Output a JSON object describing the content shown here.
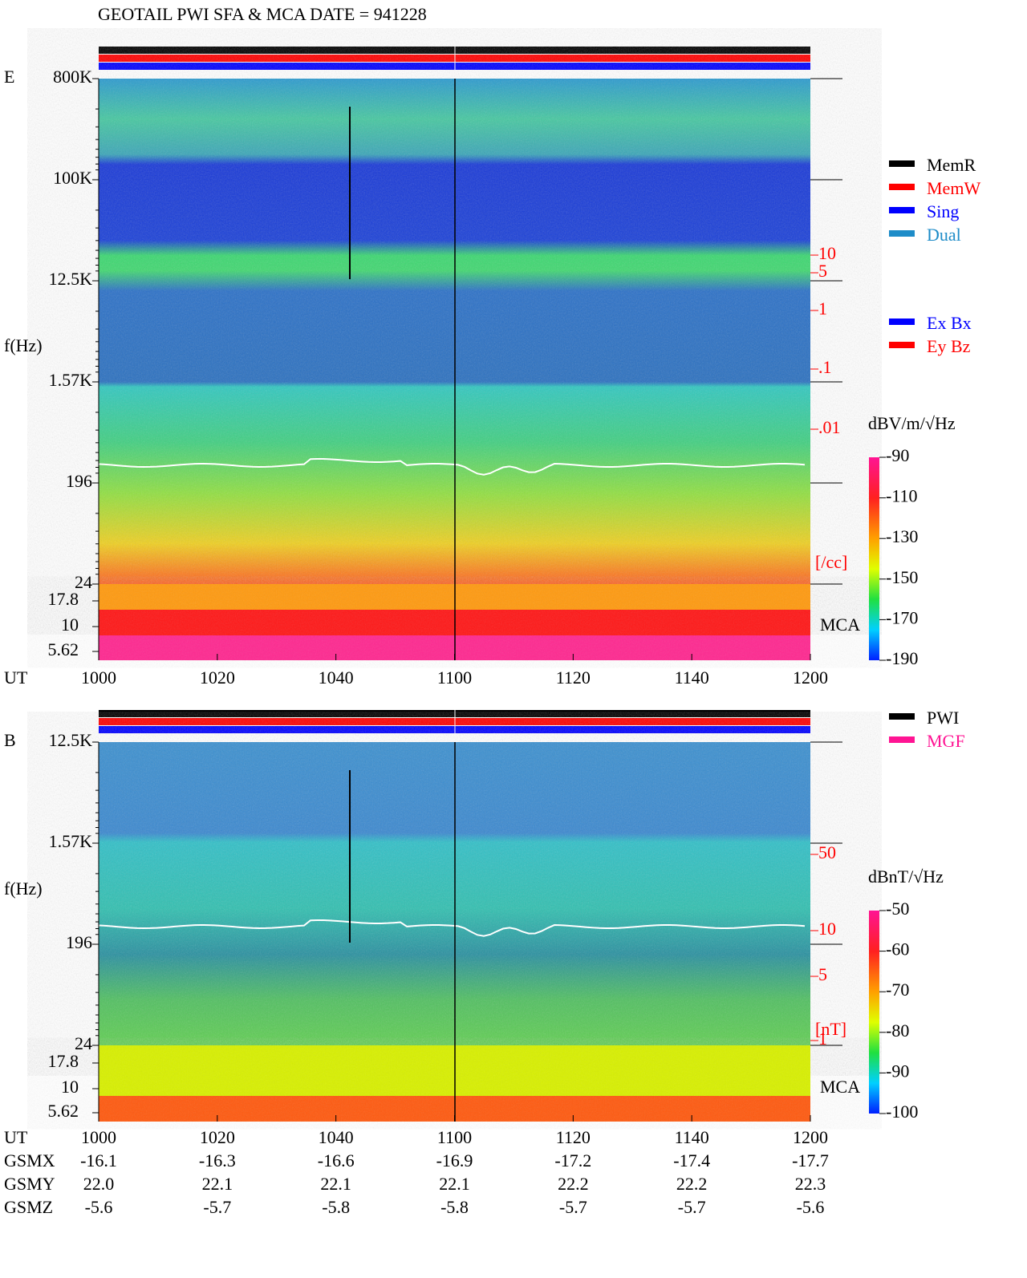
{
  "title": "GEOTAIL  PWI SFA & MCA   DATE = 941228",
  "legend_memory": [
    {
      "label": "MemR",
      "color": "#000000"
    },
    {
      "label": "MemW",
      "color": "#ff0000"
    },
    {
      "label": "Sing",
      "color": "#0000ff"
    },
    {
      "label": "Dual",
      "color": "#1e8cc8"
    }
  ],
  "legend_component": [
    {
      "label": "Ex Bx",
      "color": "#0000ff"
    },
    {
      "label": "Ey Bz",
      "color": "#ff0000"
    }
  ],
  "legend_source": [
    {
      "label": "PWI",
      "color": "#000000"
    },
    {
      "label": "MGF",
      "color": "#ff1493"
    }
  ],
  "panels": [
    {
      "id": "E",
      "ylabel": "f(Hz)",
      "freq_ticks": [
        "800K",
        "100K",
        "12.5K",
        "1.57K",
        "196",
        "24"
      ],
      "mca_ticks": [
        "17.8",
        "10",
        "5.62"
      ],
      "right_ticks": [
        "10",
        "5",
        "1",
        ".1",
        ".01"
      ],
      "right_unit": "[/cc]",
      "mca_label": "MCA",
      "time_label": "UT",
      "time_ticks": [
        "1000",
        "1020",
        "1040",
        "1100",
        "1120",
        "1140",
        "1200"
      ],
      "colorbar_unit": "dBV/m/√Hz",
      "colorbar_ticks": [
        "-90",
        "-110",
        "-130",
        "-150",
        "-170",
        "-190"
      ]
    },
    {
      "id": "B",
      "ylabel": "f(Hz)",
      "freq_ticks": [
        "12.5K",
        "1.57K",
        "196",
        "24"
      ],
      "mca_ticks": [
        "17.8",
        "10",
        "5.62"
      ],
      "right_ticks": [
        "50",
        "10",
        "5",
        "1"
      ],
      "right_unit": "[nT]",
      "mca_label": "MCA",
      "time_label": "UT",
      "time_ticks": [
        "1000",
        "1020",
        "1040",
        "1100",
        "1120",
        "1140",
        "1200"
      ],
      "colorbar_unit": "dBnT/√Hz",
      "colorbar_ticks": [
        "-50",
        "-60",
        "-70",
        "-80",
        "-90",
        "-100"
      ]
    }
  ],
  "orbit": [
    {
      "label": "GSMX",
      "values": [
        "-16.1",
        "-16.3",
        "-16.6",
        "-16.9",
        "-17.2",
        "-17.4",
        "-17.7"
      ]
    },
    {
      "label": "GSMY",
      "values": [
        "22.0",
        "22.1",
        "22.1",
        "22.1",
        "22.2",
        "22.2",
        "22.3"
      ]
    },
    {
      "label": "GSMZ",
      "values": [
        "-5.6",
        "-5.7",
        "-5.8",
        "-5.8",
        "-5.7",
        "-5.7",
        "-5.6"
      ]
    }
  ]
}
